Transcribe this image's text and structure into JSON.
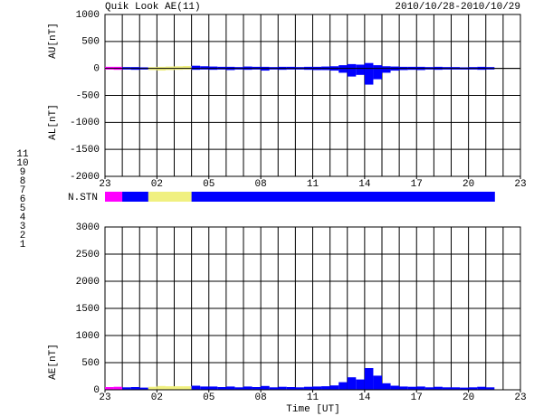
{
  "chart_data": [
    {
      "type": "au-al",
      "title": "Quik Look AE(11)",
      "subtitle": "2010/10/28-2010/10/29",
      "x": [
        23,
        23.5,
        24,
        24.5,
        25,
        25.5,
        26,
        26.5,
        27,
        27.5,
        28,
        28.5,
        29,
        29.5,
        30,
        30.5,
        31,
        31.5,
        32,
        32.5,
        33,
        33.5,
        34,
        34.5,
        35,
        35.5,
        36,
        36.5,
        37,
        37.5,
        38,
        38.5,
        39,
        39.5,
        40,
        40.5,
        41,
        41.5,
        42,
        42.5,
        43,
        43.5,
        44,
        44.5,
        45
      ],
      "series": [
        {
          "name": "AU[nT]",
          "values": [
            30,
            30,
            25,
            25,
            20,
            25,
            30,
            35,
            40,
            45,
            50,
            40,
            35,
            30,
            30,
            25,
            35,
            30,
            30,
            25,
            30,
            30,
            25,
            30,
            30,
            35,
            40,
            60,
            80,
            70,
            100,
            60,
            40,
            35,
            30,
            30,
            30,
            25,
            30,
            25,
            25,
            20,
            25,
            30,
            25
          ]
        },
        {
          "name": "AL[nT]",
          "values": [
            -20,
            -25,
            -20,
            -25,
            -20,
            -30,
            -40,
            -30,
            -25,
            -20,
            -25,
            -20,
            -25,
            -20,
            -30,
            -20,
            -25,
            -20,
            -40,
            -20,
            -25,
            -20,
            -20,
            -25,
            -30,
            -30,
            -40,
            -80,
            -150,
            -120,
            -300,
            -200,
            -80,
            -40,
            -30,
            -25,
            -30,
            -20,
            -25,
            -20,
            -20,
            -20,
            -20,
            -25,
            -20
          ]
        }
      ],
      "xlim": [
        23,
        47
      ],
      "xticks": [
        23,
        {
          "value": 26,
          "label": "02"
        },
        {
          "value": 29,
          "label": "05"
        },
        {
          "value": 32,
          "label": "08"
        },
        {
          "value": 35,
          "label": "11"
        },
        {
          "value": 38,
          "label": "14"
        },
        {
          "value": 41,
          "label": "17"
        },
        {
          "value": 44,
          "label": "20"
        },
        {
          "value": 47,
          "label": "23"
        }
      ],
      "ylim": [
        -2000,
        1000
      ],
      "yticks": [
        1000,
        500,
        0,
        -500,
        -1000,
        -1500,
        -2000
      ],
      "grid": true
    },
    {
      "type": "stations",
      "label": "N.STN",
      "x": [
        23,
        23.5,
        24,
        24.5,
        25,
        25.5,
        26,
        26.5,
        27,
        27.5,
        28,
        28.5,
        29,
        29.5,
        30,
        30.5,
        31,
        31.5,
        32,
        32.5,
        33,
        33.5,
        34,
        34.5,
        35,
        35.5,
        36,
        36.5,
        37,
        37.5,
        38,
        38.5,
        39,
        39.5,
        40,
        40.5,
        41,
        41.5,
        42,
        42.5,
        43,
        43.5,
        44,
        44.5,
        45
      ],
      "values": [
        10,
        10,
        9,
        9,
        9,
        8,
        8,
        8,
        8,
        8,
        9,
        9,
        9,
        9,
        9,
        9,
        9,
        9,
        9,
        9,
        9,
        9,
        9,
        9,
        9,
        9,
        9,
        9,
        9,
        9,
        9,
        9,
        9,
        9,
        9,
        9,
        9,
        9,
        9,
        9,
        9,
        9,
        9,
        9,
        9
      ],
      "legend": {
        "values": [
          11,
          10,
          9,
          8,
          7,
          6,
          5,
          4,
          3,
          2,
          1
        ],
        "colors": [
          "#00e0e0",
          "#ff00ff",
          "#0000ff",
          "#f0f080",
          "#c0e040",
          "#ff0000",
          "#ffffff",
          "#c0c0c0",
          "#00a0a0",
          "#8000c0",
          "#0000c0"
        ]
      }
    },
    {
      "type": "ae",
      "series": [
        {
          "name": "AE[nT]",
          "values": [
            50,
            55,
            45,
            50,
            40,
            55,
            70,
            65,
            65,
            65,
            75,
            60,
            60,
            50,
            60,
            45,
            60,
            50,
            70,
            45,
            55,
            50,
            45,
            55,
            60,
            65,
            80,
            140,
            230,
            190,
            400,
            260,
            120,
            75,
            60,
            55,
            60,
            45,
            55,
            45,
            45,
            40,
            45,
            55,
            45
          ]
        }
      ],
      "x": [
        23,
        23.5,
        24,
        24.5,
        25,
        25.5,
        26,
        26.5,
        27,
        27.5,
        28,
        28.5,
        29,
        29.5,
        30,
        30.5,
        31,
        31.5,
        32,
        32.5,
        33,
        33.5,
        34,
        34.5,
        35,
        35.5,
        36,
        36.5,
        37,
        37.5,
        38,
        38.5,
        39,
        39.5,
        40,
        40.5,
        41,
        41.5,
        42,
        42.5,
        43,
        43.5,
        44,
        44.5,
        45
      ],
      "xlabel": "Time [UT]",
      "xlim": [
        23,
        47
      ],
      "xticks": [
        23,
        {
          "value": 26,
          "label": "02"
        },
        {
          "value": 29,
          "label": "05"
        },
        {
          "value": 32,
          "label": "08"
        },
        {
          "value": 35,
          "label": "11"
        },
        {
          "value": 38,
          "label": "14"
        },
        {
          "value": 41,
          "label": "17"
        },
        {
          "value": 44,
          "label": "20"
        },
        {
          "value": 47,
          "label": "23"
        }
      ],
      "ylim": [
        0,
        3000
      ],
      "yticks": [
        0,
        500,
        1000,
        1500,
        2000,
        2500,
        3000
      ],
      "grid": true
    }
  ]
}
